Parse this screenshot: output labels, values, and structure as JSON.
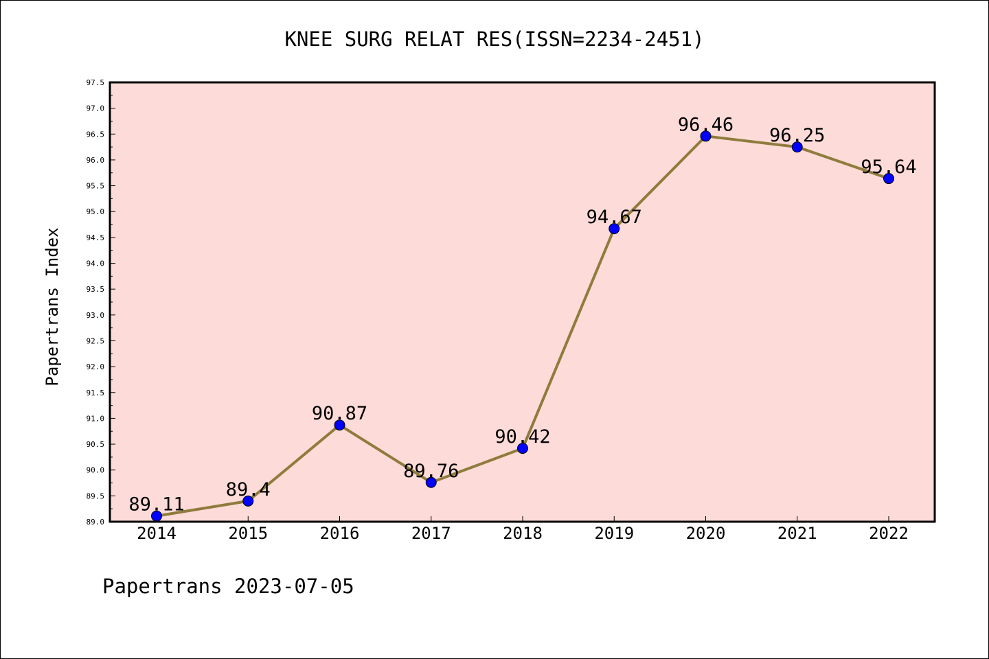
{
  "chart_data": {
    "type": "line",
    "title": "KNEE SURG RELAT RES(ISSN=2234-2451)",
    "ylabel": "Papertrans Index",
    "xlabel": "",
    "footer": "Papertrans 2023-07-05",
    "categories": [
      "2014",
      "2015",
      "2016",
      "2017",
      "2018",
      "2019",
      "2020",
      "2021",
      "2022"
    ],
    "values": [
      89.11,
      89.4,
      90.87,
      89.76,
      90.42,
      94.67,
      96.46,
      96.25,
      95.64
    ],
    "data_labels": [
      "89.11",
      "89.4",
      "90.87",
      "89.76",
      "90.42",
      "94.67",
      "96.46",
      "96.25",
      "95.64"
    ],
    "ylim": [
      89.0,
      97.5
    ],
    "yticks": [
      "89.0",
      "89.5",
      "90.0",
      "90.5",
      "91.0",
      "91.5",
      "92.0",
      "92.5",
      "93.0",
      "93.5",
      "94.0",
      "94.5",
      "95.0",
      "95.5",
      "96.0",
      "96.5",
      "97.0",
      "97.5"
    ],
    "grid": false,
    "colors": {
      "plot_background": "#fddbd8",
      "line": "#8f7c3d",
      "marker": "#0000ff"
    }
  }
}
